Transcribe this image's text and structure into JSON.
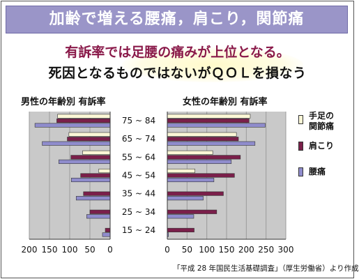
{
  "title": "加齢で増える腰痛，肩こり，関節痛",
  "subtitle1": "有訴率では足腰の痛みが上位となる。",
  "subtitle2": "死因となるものではないがＱＯＬを損なう",
  "source": "「平成 28 年国民生活基礎調査」（厚生労働省）より作成",
  "chart_data": [
    {
      "type": "bar",
      "orientation": "horizontal",
      "title": "男性の年齢別 有訴率",
      "categories": [
        "75 ~ 84",
        "65 ~ 74",
        "55 ~ 64",
        "45 ~ 54",
        "35 ~ 44",
        "25 ~ 34",
        "15 ~ 24"
      ],
      "xlim": [
        200,
        0
      ],
      "xticks": [
        "200",
        "150",
        "100",
        "50",
        "0"
      ],
      "series": [
        {
          "name": "手足の関節痛",
          "color": "#fbf7d6",
          "values": [
            130,
            102,
            68,
            28,
            0,
            0,
            0
          ]
        },
        {
          "name": "肩こり",
          "color": "#7a1f4a",
          "values": [
            132,
            106,
            97,
            73,
            66,
            50,
            12
          ]
        },
        {
          "name": "腰痛",
          "color": "#8f8ccc",
          "values": [
            186,
            168,
            127,
            96,
            84,
            58,
            19
          ]
        }
      ]
    },
    {
      "type": "bar",
      "orientation": "horizontal",
      "title": "女性の年齢別 有訴率",
      "categories": [
        "75 ~ 84",
        "65 ~ 74",
        "55 ~ 64",
        "45 ~ 54",
        "35 ~ 44",
        "25 ~ 34",
        "15 ~ 24"
      ],
      "xlim": [
        0,
        300
      ],
      "xticks": [
        "0",
        "50",
        "100",
        "150",
        "200",
        "250",
        "300"
      ],
      "series": [
        {
          "name": "手足の関節痛",
          "color": "#fbf7d6",
          "values": [
            210,
            175,
            115,
            70,
            0,
            0,
            0
          ]
        },
        {
          "name": "肩こり",
          "color": "#7a1f4a",
          "values": [
            207,
            180,
            185,
            170,
            142,
            125,
            68
          ]
        },
        {
          "name": "腰痛",
          "color": "#8f8ccc",
          "values": [
            248,
            222,
            162,
            118,
            91,
            67,
            3
          ]
        }
      ]
    }
  ],
  "legend": [
    {
      "label_lines": [
        "手足の",
        "関節痛"
      ],
      "color": "#fbf7d6"
    },
    {
      "label_lines": [
        "肩こり"
      ],
      "color": "#7a1f4a"
    },
    {
      "label_lines": [
        "腰痛"
      ],
      "color": "#8f8ccc"
    }
  ]
}
